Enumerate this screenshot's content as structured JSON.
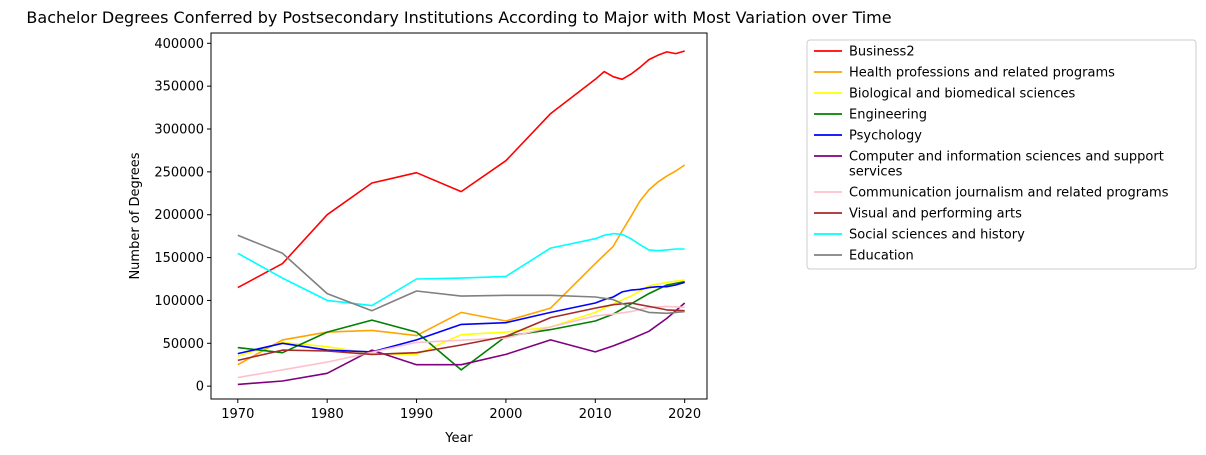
{
  "chart_data": {
    "type": "line",
    "title": "Bachelor Degrees Conferred by Postsecondary Institutions According to Major with Most Variation over Time",
    "xlabel": "Year",
    "ylabel": "Number of Degrees",
    "xlim": [
      1967,
      2022.5
    ],
    "ylim": [
      -15000,
      412000
    ],
    "xticks": [
      1970,
      1980,
      1990,
      2000,
      2010,
      2020
    ],
    "yticks": [
      0,
      50000,
      100000,
      150000,
      200000,
      250000,
      300000,
      350000,
      400000
    ],
    "ytick_labels": [
      "0",
      "50000",
      "100000",
      "150000",
      "200000",
      "250000",
      "300000",
      "350000",
      "400000"
    ],
    "grid": false,
    "legend_position": "outside right",
    "series": [
      {
        "name": "Business2",
        "color": "#ff0000",
        "x": [
          1970,
          1975,
          1980,
          1985,
          1990,
          1995,
          2000,
          2005,
          2010,
          2011,
          2012,
          2013,
          2014,
          2015,
          2016,
          2017,
          2018,
          2019,
          2020
        ],
        "y": [
          115000,
          143000,
          200000,
          237000,
          249000,
          227000,
          263000,
          318000,
          358000,
          367000,
          361000,
          358000,
          364000,
          372000,
          381000,
          386000,
          390000,
          388000,
          391000
        ]
      },
      {
        "name": "Health professions and related programs",
        "color": "#ffa500",
        "x": [
          1970,
          1975,
          1980,
          1985,
          1990,
          1995,
          2000,
          2005,
          2010,
          2011,
          2012,
          2013,
          2014,
          2015,
          2016,
          2017,
          2018,
          2019,
          2020
        ],
        "y": [
          25000,
          54000,
          63000,
          65000,
          59000,
          86000,
          76000,
          91000,
          143000,
          153000,
          163000,
          181000,
          198000,
          216000,
          229000,
          238000,
          245000,
          251000,
          258000
        ]
      },
      {
        "name": "Biological and biomedical sciences",
        "color": "#ffff00",
        "x": [
          1970,
          1975,
          1980,
          1985,
          1990,
          1995,
          2000,
          2005,
          2010,
          2012,
          2014,
          2016,
          2018,
          2020
        ],
        "y": [
          35000,
          51000,
          46000,
          38000,
          37000,
          60000,
          63000,
          69000,
          86000,
          96000,
          105000,
          117000,
          121000,
          124000
        ]
      },
      {
        "name": "Engineering",
        "color": "#008000",
        "x": [
          1970,
          1975,
          1980,
          1985,
          1990,
          1995,
          2000,
          2005,
          2010,
          2012,
          2014,
          2016,
          2018,
          2020
        ],
        "y": [
          45000,
          39000,
          63000,
          77000,
          63000,
          19000,
          58000,
          66000,
          76000,
          84000,
          96000,
          108000,
          118000,
          122000
        ]
      },
      {
        "name": "Psychology",
        "color": "#0000ff",
        "x": [
          1970,
          1975,
          1980,
          1985,
          1990,
          1995,
          2000,
          2005,
          2010,
          2011,
          2012,
          2013,
          2014,
          2015,
          2016,
          2017,
          2018,
          2019,
          2020
        ],
        "y": [
          38000,
          50000,
          42000,
          40000,
          54000,
          72000,
          74000,
          86000,
          97000,
          101000,
          104000,
          110000,
          112000,
          113000,
          115000,
          116000,
          116000,
          118000,
          121000
        ]
      },
      {
        "name": "Computer and information sciences and support services",
        "color": "#800080",
        "x": [
          1970,
          1975,
          1980,
          1985,
          1990,
          1995,
          2000,
          2005,
          2010,
          2012,
          2014,
          2016,
          2018,
          2020
        ],
        "y": [
          2000,
          6000,
          15000,
          42000,
          25000,
          25000,
          37000,
          54000,
          40000,
          47000,
          55000,
          64000,
          79000,
          97000
        ]
      },
      {
        "name": "Communication journalism and related programs",
        "color": "#ffc0cb",
        "x": [
          1970,
          1980,
          1990,
          2000,
          2010,
          2012,
          2014,
          2016,
          2018,
          2020
        ],
        "y": [
          10000,
          28000,
          51000,
          56000,
          82000,
          84000,
          87000,
          92000,
          93000,
          92000
        ]
      },
      {
        "name": "Visual and performing arts",
        "color": "#a52a2a",
        "x": [
          1970,
          1975,
          1980,
          1985,
          1990,
          1995,
          2000,
          2005,
          2010,
          2012,
          2014,
          2016,
          2018,
          2020
        ],
        "y": [
          30000,
          42000,
          41000,
          37000,
          39000,
          48000,
          58000,
          80000,
          91000,
          95000,
          97000,
          93000,
          89000,
          88000
        ]
      },
      {
        "name": "Social sciences and history",
        "color": "#00ffff",
        "x": [
          1970,
          1975,
          1980,
          1985,
          1990,
          1995,
          2000,
          2005,
          2010,
          2011,
          2012,
          2013,
          2014,
          2015,
          2016,
          2017,
          2018,
          2019,
          2020
        ],
        "y": [
          155000,
          126000,
          100000,
          94000,
          125000,
          126000,
          128000,
          161000,
          172000,
          176000,
          178000,
          177000,
          172000,
          165000,
          159000,
          158000,
          159000,
          160000,
          160000
        ]
      },
      {
        "name": "Education",
        "color": "#808080",
        "x": [
          1970,
          1975,
          1980,
          1985,
          1990,
          1995,
          2000,
          2005,
          2010,
          2012,
          2014,
          2016,
          2018,
          2020
        ],
        "y": [
          176000,
          155000,
          108000,
          88000,
          111000,
          105000,
          106000,
          106000,
          104000,
          101000,
          92000,
          86000,
          85000,
          87000
        ]
      }
    ]
  }
}
